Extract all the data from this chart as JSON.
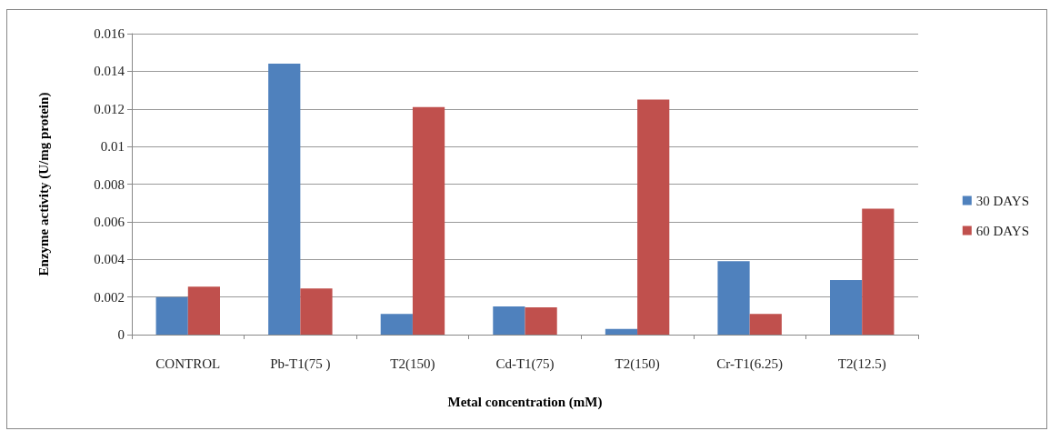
{
  "chart_data": {
    "type": "bar",
    "xlabel": "Metal concentration (mM)",
    "ylabel": "Enzyme activity (U/mg protein)",
    "categories": [
      "CONTROL",
      "Pb-T1(75 )",
      "T2(150)",
      "Cd-T1(75)",
      "T2(150)",
      "Cr-T1(6.25)",
      "T2(12.5)"
    ],
    "series": [
      {
        "name": "30 DAYS",
        "color": "#4f81bd",
        "values": [
          0.002,
          0.0144,
          0.0011,
          0.0015,
          0.0003,
          0.0039,
          0.0029
        ]
      },
      {
        "name": "60 DAYS",
        "color": "#c0504d",
        "values": [
          0.00255,
          0.00245,
          0.0121,
          0.00145,
          0.0125,
          0.0011,
          0.0067
        ]
      }
    ],
    "ylim": [
      0,
      0.016
    ],
    "yticks": [
      0,
      0.002,
      0.004,
      0.006,
      0.008,
      0.01,
      0.012,
      0.014,
      0.016
    ],
    "grid": "y",
    "legend": "right"
  }
}
